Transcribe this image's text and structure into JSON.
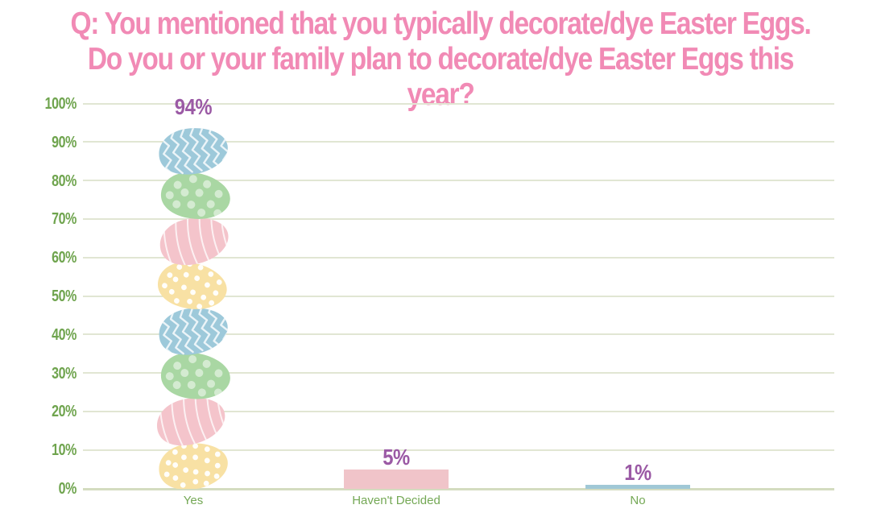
{
  "page": {
    "background": "#ffffff"
  },
  "chart_data": {
    "type": "bar",
    "title": "Q: You mentioned that you typically decorate/dye Easter Eggs.\nDo you or your family plan to decorate/dye Easter Eggs this year?",
    "categories": [
      "Yes",
      "Haven't Decided",
      "No"
    ],
    "values": [
      94,
      5,
      1
    ],
    "value_labels": [
      "94%",
      "5%",
      "1%"
    ],
    "yticks": [
      "0%",
      "10%",
      "20%",
      "30%",
      "40%",
      "50%",
      "60%",
      "70%",
      "80%",
      "90%",
      "100%"
    ],
    "ylim": [
      0,
      100
    ],
    "ytick_step": 10,
    "grid": true,
    "legend": false,
    "xlabel": "",
    "ylabel": "",
    "yes_bar_illustration": {
      "description": "stack of 8 decorated easter eggs, repeating bottom-to-top: yellow dots, pink stripes, green dots, blue zigzag",
      "egg_patterns": [
        "zigzag",
        "dots",
        "stripes",
        "dots"
      ]
    }
  },
  "colors": {
    "title_pink": "#f18ab5",
    "value_label_purple": "#9b5aa5",
    "axis_green": "#6fa44e",
    "category_green": "#74a855",
    "gridline": "#e1e6d3",
    "baseline": "#d4dcc0",
    "egg_blue": "#9dc9da",
    "egg_green": "#a9d7a3",
    "egg_pink": "#f4c4cb",
    "egg_yellow": "#f8e1a4",
    "bar_pink": "#f0c4c9",
    "bar_blue": "#a0c8d6"
  }
}
